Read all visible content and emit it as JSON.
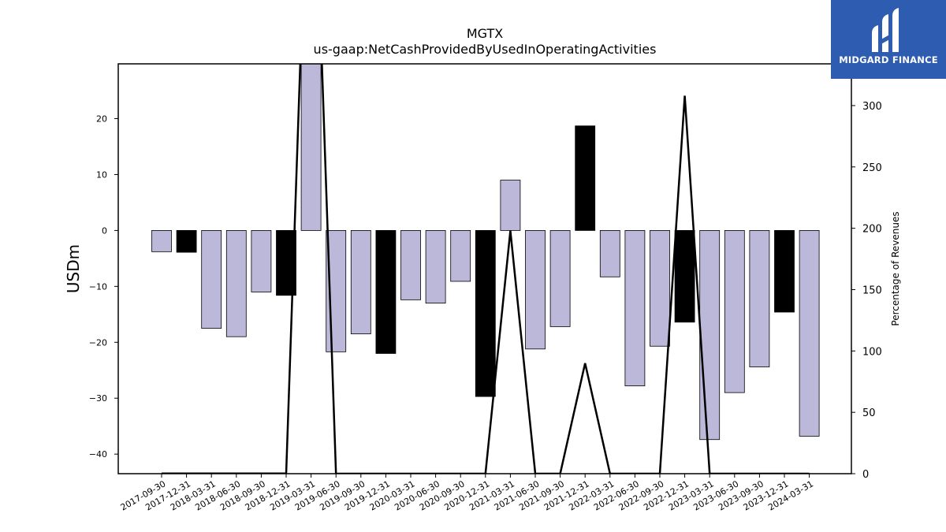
{
  "chart_data": {
    "type": "bar",
    "title": "MGTX",
    "subtitle": "us-gaap:NetCashProvidedByUsedInOperatingActivities",
    "ylabel": "USDm",
    "y2label": "Percentage of Revenues",
    "ylim": [
      -43.5,
      29.8
    ],
    "y2lim": [
      0,
      334
    ],
    "yticks": [
      20,
      10,
      0,
      -10,
      -20,
      -30,
      -40
    ],
    "y2ticks": [
      0,
      50,
      100,
      150,
      200,
      250,
      300
    ],
    "grid": false,
    "categories": [
      "2017-09-30",
      "2017-12-31",
      "2018-03-31",
      "2018-06-30",
      "2018-09-30",
      "2018-12-31",
      "2019-03-31",
      "2019-06-30",
      "2019-09-30",
      "2019-12-31",
      "2020-03-31",
      "2020-06-30",
      "2020-09-30",
      "2020-12-31",
      "2021-03-31",
      "2021-06-30",
      "2021-09-30",
      "2021-12-31",
      "2022-03-31",
      "2022-06-30",
      "2022-09-30",
      "2022-12-31",
      "2023-03-31",
      "2023-06-30",
      "2023-09-30",
      "2023-12-31",
      "2024-03-31"
    ],
    "values": [
      -3.8,
      -3.9,
      -17.5,
      -19.0,
      -11.0,
      -11.6,
      30.5,
      -21.7,
      -18.5,
      -22.0,
      -12.4,
      -13.0,
      -9.1,
      -29.7,
      9.0,
      -21.2,
      -17.2,
      18.7,
      -8.3,
      -27.8,
      -20.7,
      -16.4,
      -37.4,
      -29.0,
      -24.4,
      -14.6,
      -36.8
    ],
    "annual_flags": [
      0,
      1,
      0,
      0,
      0,
      1,
      0,
      0,
      0,
      1,
      0,
      0,
      0,
      1,
      0,
      0,
      0,
      1,
      0,
      0,
      0,
      1,
      0,
      0,
      0,
      1,
      0
    ],
    "colors": {
      "quarterly": "#bcb8d9",
      "annual": "#000000",
      "line": "#000000",
      "logo_bg": "#2d5cb0"
    },
    "line_series": {
      "name": "Percentage of Revenues",
      "values": [
        0.1,
        0.1,
        0.1,
        0.1,
        0.1,
        0.1,
        null,
        0,
        0,
        0,
        0,
        0,
        0,
        0,
        198,
        0,
        0,
        90,
        0,
        0,
        0,
        308,
        0,
        0,
        0,
        0,
        0
      ]
    }
  },
  "logo": {
    "text": "MIDGARD FINANCE"
  }
}
